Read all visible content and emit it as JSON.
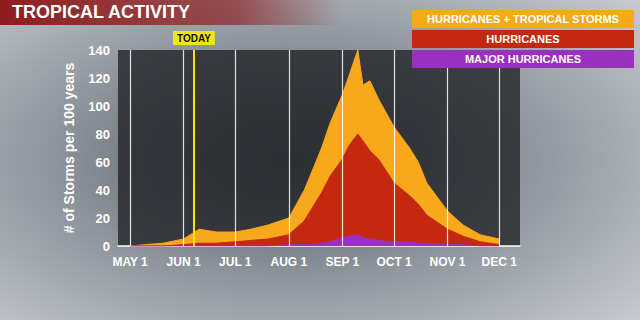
{
  "chart_data": {
    "type": "area",
    "title": "TROPICAL ACTIVITY",
    "y_label": "# of Storms per 100 years",
    "x": [
      121,
      130,
      140,
      152,
      161,
      171,
      182,
      191,
      201,
      213,
      222,
      232,
      237,
      244,
      248,
      253,
      256,
      260,
      265,
      274,
      283,
      288,
      293,
      305,
      314,
      324,
      335
    ],
    "series": [
      {
        "name": "HURRICANES + TROPICAL STORMS",
        "color": "#f7a81b",
        "values": [
          0,
          1,
          2,
          5,
          12,
          10,
          10,
          12,
          15,
          20,
          40,
          70,
          88,
          108,
          122,
          140,
          115,
          118,
          105,
          85,
          70,
          60,
          45,
          25,
          15,
          8,
          5
        ]
      },
      {
        "name": "HURRICANES",
        "color": "#c4290f",
        "values": [
          0,
          0,
          0,
          1,
          2,
          2,
          3,
          4,
          5,
          8,
          18,
          38,
          50,
          62,
          72,
          80,
          75,
          68,
          62,
          45,
          36,
          30,
          22,
          12,
          7,
          3,
          1
        ]
      },
      {
        "name": "MAJOR HURRICANES",
        "color": "#9a2fc0",
        "values": [
          0,
          0,
          0,
          0,
          0,
          0,
          0,
          0,
          0,
          1,
          1,
          2,
          3,
          6,
          7,
          8,
          6,
          5,
          4,
          3,
          3,
          2,
          2,
          1,
          1,
          0,
          0
        ]
      }
    ],
    "xlim": [
      114,
      347
    ],
    "xticks": [
      {
        "value": 121,
        "label": "MAY 1"
      },
      {
        "value": 152,
        "label": "JUN 1"
      },
      {
        "value": 182,
        "label": "JUL 1"
      },
      {
        "value": 213,
        "label": "AUG 1"
      },
      {
        "value": 244,
        "label": "SEP 1"
      },
      {
        "value": 274,
        "label": "OCT 1"
      },
      {
        "value": 305,
        "label": "NOV 1"
      },
      {
        "value": 335,
        "label": "DEC 1"
      }
    ],
    "ylim": [
      0,
      140
    ],
    "yticks": [
      0,
      20,
      40,
      60,
      80,
      100,
      120,
      140
    ],
    "grid": true,
    "legend": "upper right",
    "stacked": false,
    "annotations": [
      {
        "text": "TODAY",
        "x": 158
      }
    ]
  }
}
